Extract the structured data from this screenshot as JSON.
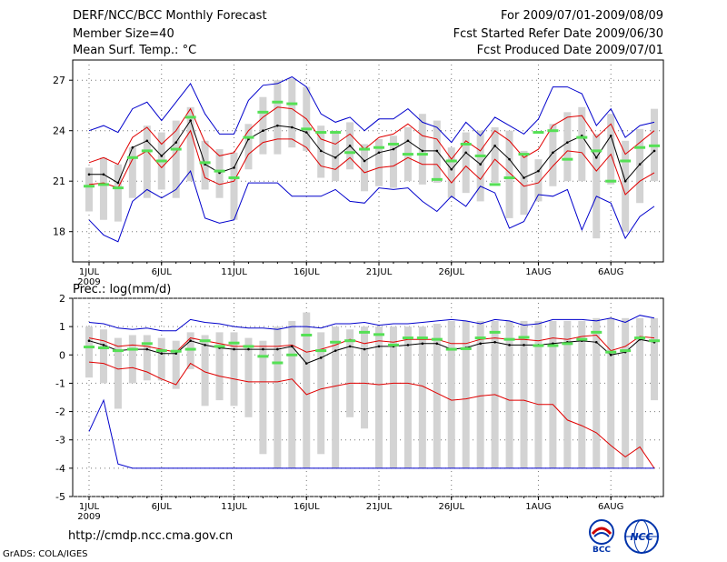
{
  "header": {
    "title": "DERF/NCC/BCC Monthly Forecast",
    "member_size": "Member Size=40",
    "variable": "Mean Surf. Temp.: °C",
    "period": "For 2009/07/01-2009/08/09",
    "start_date": "Fcst Started Refer Date 2009/06/30",
    "produced_date": "Fcst Produced Date 2009/07/01"
  },
  "footer": {
    "url": "http://cmdp.ncc.cma.gov.cn",
    "grads": "GrADS: COLA/IGES",
    "logo_bcc": "BCC",
    "logo_ncc": "NCC"
  },
  "colors": {
    "spread": "#d3d3d3",
    "envelope": "#0000cc",
    "pct": "#e00000",
    "mean": "#000000",
    "median_bar": "#55e055"
  },
  "chart_data": [
    {
      "type": "line",
      "title": "Mean Surf. Temp.: °C",
      "xlabel": "",
      "ylabel": "",
      "ylim": [
        16.2,
        28.2
      ],
      "yticks": [
        18,
        21,
        24,
        27
      ],
      "xticks": [
        {
          "day": 1,
          "label": "1JUL"
        },
        {
          "day": 6,
          "label": "6JUL"
        },
        {
          "day": 11,
          "label": "11JUL"
        },
        {
          "day": 16,
          "label": "16JUL"
        },
        {
          "day": 21,
          "label": "21JUL"
        },
        {
          "day": 26,
          "label": "26JUL"
        },
        {
          "day": 32,
          "label": "1AUG"
        },
        {
          "day": 37,
          "label": "6AUG"
        }
      ],
      "year_label": "2009",
      "series": [
        {
          "name": "max",
          "values": [
            24.0,
            24.3,
            23.9,
            25.3,
            25.7,
            24.6,
            25.7,
            26.8,
            25.0,
            23.8,
            23.8,
            25.8,
            26.7,
            26.8,
            27.2,
            26.6,
            25.0,
            24.5,
            24.8,
            24.0,
            24.7,
            24.7,
            25.3,
            24.5,
            24.2,
            23.3,
            24.5,
            23.7,
            24.8,
            24.3,
            23.8,
            24.7,
            26.6,
            26.6,
            26.2,
            24.3,
            25.3,
            23.6,
            24.3,
            24.5
          ]
        },
        {
          "name": "p90",
          "values": [
            22.1,
            22.4,
            22.0,
            23.6,
            24.2,
            23.2,
            24.0,
            25.3,
            23.3,
            22.5,
            22.7,
            24.0,
            24.8,
            25.4,
            25.3,
            24.7,
            23.5,
            23.2,
            23.8,
            22.9,
            23.6,
            23.8,
            24.4,
            23.7,
            23.5,
            22.3,
            23.4,
            22.8,
            24.0,
            23.4,
            22.4,
            22.9,
            24.3,
            24.8,
            24.9,
            23.6,
            24.4,
            22.6,
            23.3,
            24.0
          ]
        },
        {
          "name": "mean",
          "values": [
            21.4,
            21.4,
            20.9,
            23.0,
            23.4,
            22.5,
            23.3,
            24.6,
            22.0,
            21.5,
            21.8,
            23.5,
            24.0,
            24.3,
            24.2,
            23.9,
            22.8,
            22.4,
            23.1,
            22.2,
            22.7,
            22.9,
            23.4,
            22.8,
            22.8,
            21.7,
            22.7,
            22.0,
            23.1,
            22.3,
            21.2,
            21.6,
            22.7,
            23.3,
            23.7,
            22.4,
            23.7,
            21.0,
            22.0,
            22.8
          ]
        },
        {
          "name": "p10",
          "values": [
            20.8,
            20.9,
            20.6,
            22.3,
            22.8,
            21.8,
            22.7,
            24.0,
            21.2,
            20.8,
            21.0,
            22.6,
            23.3,
            23.5,
            23.5,
            23.0,
            21.9,
            21.7,
            22.4,
            21.5,
            21.8,
            21.9,
            22.4,
            22.0,
            22.0,
            20.9,
            21.9,
            21.1,
            22.3,
            21.5,
            20.7,
            20.9,
            21.9,
            22.8,
            22.7,
            21.6,
            22.6,
            20.2,
            21.0,
            21.5
          ]
        },
        {
          "name": "min",
          "values": [
            18.7,
            17.8,
            17.4,
            19.8,
            20.5,
            20.0,
            20.5,
            21.6,
            18.8,
            18.5,
            18.7,
            20.9,
            20.9,
            20.9,
            20.1,
            20.1,
            20.1,
            20.5,
            19.8,
            19.7,
            20.6,
            20.5,
            20.6,
            19.8,
            19.2,
            20.1,
            19.5,
            20.7,
            20.3,
            18.2,
            18.6,
            20.2,
            20.1,
            20.5,
            18.1,
            20.1,
            19.7,
            17.6,
            18.9,
            19.5
          ]
        }
      ],
      "spread": [
        [
          19.2,
          21.8
        ],
        [
          18.7,
          22.4
        ],
        [
          18.6,
          22.0
        ],
        [
          20.0,
          23.0
        ],
        [
          20.0,
          24.3
        ],
        [
          20.5,
          23.9
        ],
        [
          20.0,
          24.6
        ],
        [
          21.0,
          25.4
        ],
        [
          20.5,
          23.4
        ],
        [
          20.0,
          22.9
        ],
        [
          18.7,
          22.7
        ],
        [
          21.7,
          24.4
        ],
        [
          22.6,
          26.0
        ],
        [
          22.6,
          27.0
        ],
        [
          23.0,
          27.1
        ],
        [
          22.8,
          26.6
        ],
        [
          21.2,
          24.3
        ],
        [
          21.0,
          24.0
        ],
        [
          21.7,
          24.5
        ],
        [
          20.4,
          23.2
        ],
        [
          20.7,
          23.5
        ],
        [
          20.6,
          23.7
        ],
        [
          21.0,
          24.2
        ],
        [
          20.8,
          25.0
        ],
        [
          20.9,
          24.6
        ],
        [
          20.0,
          23.0
        ],
        [
          20.3,
          23.9
        ],
        [
          19.8,
          24.0
        ],
        [
          20.9,
          24.2
        ],
        [
          18.8,
          24.0
        ],
        [
          19.0,
          22.8
        ],
        [
          19.8,
          22.3
        ],
        [
          20.7,
          24.4
        ],
        [
          21.0,
          25.1
        ],
        [
          21.0,
          25.4
        ],
        [
          17.6,
          23.8
        ],
        [
          20.8,
          25.0
        ],
        [
          18.0,
          23.4
        ],
        [
          19.7,
          24.1
        ],
        [
          21.0,
          25.3
        ]
      ],
      "median": [
        20.7,
        20.8,
        20.6,
        22.4,
        22.8,
        22.2,
        22.9,
        24.8,
        22.1,
        21.6,
        21.2,
        23.6,
        25.1,
        25.7,
        25.6,
        24.1,
        23.9,
        23.9,
        22.7,
        22.9,
        23.0,
        23.2,
        22.6,
        22.6,
        21.1,
        22.2,
        23.2,
        22.5,
        20.8,
        21.2,
        22.6,
        23.9,
        24.0,
        22.3,
        23.6,
        22.8,
        21.0,
        22.2,
        23.0,
        23.1
      ]
    },
    {
      "type": "line",
      "title": "Prec.: log(mm/d)",
      "xlabel": "",
      "ylabel": "",
      "ylim": [
        -5,
        2
      ],
      "yticks": [
        -5,
        -4,
        -3,
        -2,
        -1,
        0,
        1,
        2
      ],
      "xticks": [
        {
          "day": 1,
          "label": "1JUL"
        },
        {
          "day": 6,
          "label": "6JUL"
        },
        {
          "day": 11,
          "label": "11JUL"
        },
        {
          "day": 16,
          "label": "16JUL"
        },
        {
          "day": 21,
          "label": "21JUL"
        },
        {
          "day": 26,
          "label": "26JUL"
        },
        {
          "day": 32,
          "label": "1AUG"
        },
        {
          "day": 37,
          "label": "6AUG"
        }
      ],
      "year_label": "2009",
      "series": [
        {
          "name": "max",
          "values": [
            1.15,
            1.1,
            0.95,
            0.9,
            0.95,
            0.85,
            0.85,
            1.25,
            1.15,
            1.1,
            1.0,
            0.95,
            0.95,
            0.9,
            1.0,
            1.0,
            0.95,
            1.1,
            1.1,
            1.15,
            1.05,
            1.1,
            1.1,
            1.15,
            1.2,
            1.25,
            1.2,
            1.1,
            1.25,
            1.2,
            1.05,
            1.1,
            1.25,
            1.25,
            1.25,
            1.2,
            1.3,
            1.15,
            1.4,
            1.3
          ]
        },
        {
          "name": "p90",
          "values": [
            0.6,
            0.5,
            0.3,
            0.35,
            0.3,
            0.2,
            0.1,
            0.6,
            0.5,
            0.4,
            0.3,
            0.3,
            0.3,
            0.3,
            0.35,
            0.1,
            0.2,
            0.35,
            0.55,
            0.4,
            0.5,
            0.45,
            0.55,
            0.55,
            0.55,
            0.4,
            0.4,
            0.55,
            0.6,
            0.55,
            0.55,
            0.5,
            0.6,
            0.55,
            0.65,
            0.7,
            0.15,
            0.3,
            0.65,
            0.6
          ]
        },
        {
          "name": "mean",
          "values": [
            0.5,
            0.35,
            0.15,
            0.2,
            0.2,
            0.05,
            0.05,
            0.5,
            0.35,
            0.25,
            0.2,
            0.2,
            0.2,
            0.2,
            0.3,
            -0.3,
            -0.1,
            0.15,
            0.3,
            0.2,
            0.3,
            0.3,
            0.35,
            0.4,
            0.4,
            0.2,
            0.25,
            0.4,
            0.45,
            0.35,
            0.35,
            0.35,
            0.4,
            0.45,
            0.5,
            0.45,
            0.0,
            0.1,
            0.55,
            0.45
          ]
        },
        {
          "name": "p10",
          "values": [
            -0.25,
            -0.3,
            -0.5,
            -0.45,
            -0.6,
            -0.85,
            -1.05,
            -0.3,
            -0.6,
            -0.75,
            -0.85,
            -0.95,
            -0.95,
            -0.95,
            -0.85,
            -1.4,
            -1.2,
            -1.1,
            -1.0,
            -1.0,
            -1.05,
            -1.0,
            -1.0,
            -1.1,
            -1.35,
            -1.6,
            -1.55,
            -1.45,
            -1.4,
            -1.6,
            -1.6,
            -1.75,
            -1.75,
            -2.3,
            -2.5,
            -2.75,
            -3.2,
            -3.6,
            -3.25,
            -4.0
          ]
        },
        {
          "name": "min",
          "values": [
            -2.7,
            -1.6,
            -3.85,
            -4.0,
            -4.0,
            -4.0,
            -4.0,
            -4.0,
            -4.0,
            -4.0,
            -4.0,
            -4.0,
            -4.0,
            -4.0,
            -4.0,
            -4.0,
            -4.0,
            -4.0,
            -4.0,
            -4.0,
            -4.0,
            -4.0,
            -4.0,
            -4.0,
            -4.0,
            -4.0,
            -4.0,
            -4.0,
            -4.0,
            -4.0,
            -4.0,
            -4.0,
            -4.0,
            -4.0,
            -4.0,
            -4.0,
            -4.0,
            -4.0,
            -4.0,
            -4.0
          ]
        }
      ],
      "spread": [
        [
          -0.8,
          1.0
        ],
        [
          -1.0,
          0.9
        ],
        [
          -1.9,
          0.6
        ],
        [
          -1.0,
          0.7
        ],
        [
          -0.9,
          0.7
        ],
        [
          -0.9,
          0.6
        ],
        [
          -1.2,
          0.5
        ],
        [
          -0.5,
          0.8
        ],
        [
          -1.8,
          0.7
        ],
        [
          -1.6,
          0.8
        ],
        [
          -1.8,
          0.8
        ],
        [
          -2.2,
          0.6
        ],
        [
          -3.5,
          0.5
        ],
        [
          -4.0,
          1.0
        ],
        [
          -4.0,
          1.2
        ],
        [
          -4.0,
          1.5
        ],
        [
          -3.5,
          0.8
        ],
        [
          -4.0,
          1.0
        ],
        [
          -2.2,
          0.9
        ],
        [
          -2.6,
          1.0
        ],
        [
          -4.0,
          1.0
        ],
        [
          -4.0,
          1.0
        ],
        [
          -4.0,
          1.0
        ],
        [
          -4.0,
          1.0
        ],
        [
          -4.0,
          1.1
        ],
        [
          -4.0,
          1.2
        ],
        [
          -4.0,
          1.2
        ],
        [
          -4.0,
          1.2
        ],
        [
          -4.0,
          1.2
        ],
        [
          -4.0,
          1.2
        ],
        [
          -4.0,
          1.2
        ],
        [
          -4.0,
          1.2
        ],
        [
          -4.0,
          1.2
        ],
        [
          -4.0,
          1.2
        ],
        [
          -4.0,
          1.2
        ],
        [
          -4.0,
          1.3
        ],
        [
          -4.0,
          1.3
        ],
        [
          -4.0,
          1.3
        ],
        [
          -4.0,
          1.3
        ],
        [
          -1.6,
          1.3
        ]
      ],
      "median": [
        0.28,
        0.25,
        0.15,
        0.2,
        0.4,
        0.15,
        0.13,
        0.2,
        0.5,
        0.3,
        0.42,
        0.3,
        -0.05,
        -0.28,
        0.0,
        0.7,
        0.15,
        0.45,
        0.5,
        0.8,
        0.72,
        0.35,
        0.6,
        0.6,
        0.55,
        0.2,
        0.22,
        0.6,
        0.8,
        0.55,
        0.62,
        0.33,
        0.33,
        0.4,
        0.55,
        0.8,
        0.1,
        0.15,
        0.6,
        0.5
      ]
    }
  ]
}
